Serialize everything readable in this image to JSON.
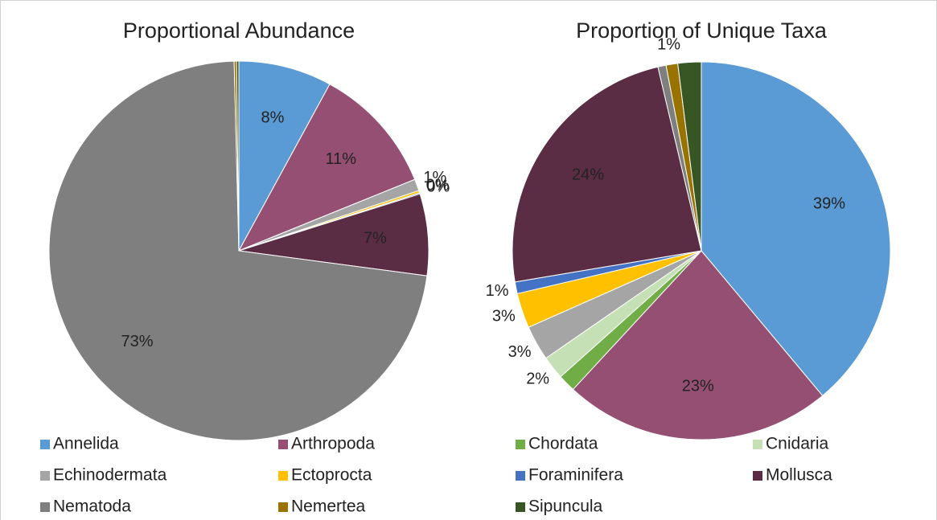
{
  "legend": [
    {
      "name": "Annelida",
      "color": "#5b9bd5"
    },
    {
      "name": "Arthropoda",
      "color": "#954f72"
    },
    {
      "name": "Chordata",
      "color": "#70ad47"
    },
    {
      "name": "Cnidaria",
      "color": "#c5e0b4"
    },
    {
      "name": "Echinodermata",
      "color": "#a5a5a5"
    },
    {
      "name": "Ectoprocta",
      "color": "#ffc000"
    },
    {
      "name": "Foraminifera",
      "color": "#4472c4"
    },
    {
      "name": "Mollusca",
      "color": "#5a2d44"
    },
    {
      "name": "Nematoda",
      "color": "#7f7f7f"
    },
    {
      "name": "Nemertea",
      "color": "#997300"
    },
    {
      "name": "Sipuncula",
      "color": "#375623"
    }
  ],
  "chart_data": [
    {
      "type": "pie",
      "title": "Proportional Abundance",
      "values": [
        8,
        11,
        0,
        0,
        1,
        0.2,
        0.1,
        7,
        73,
        0.2,
        0.2
      ],
      "value_labels": [
        "8%",
        "11%",
        null,
        null,
        "1%",
        "0%",
        "0%",
        "7%",
        "73%",
        null,
        null
      ]
    },
    {
      "type": "pie",
      "title": "Proportion of Unique Taxa",
      "values": [
        39,
        23,
        1.5,
        2,
        3,
        3,
        1,
        24,
        0.7,
        1,
        2
      ],
      "value_labels": [
        "39%",
        "23%",
        null,
        "2%",
        "3%",
        "3%",
        "1%",
        "24%",
        null,
        "1%",
        null
      ]
    }
  ]
}
